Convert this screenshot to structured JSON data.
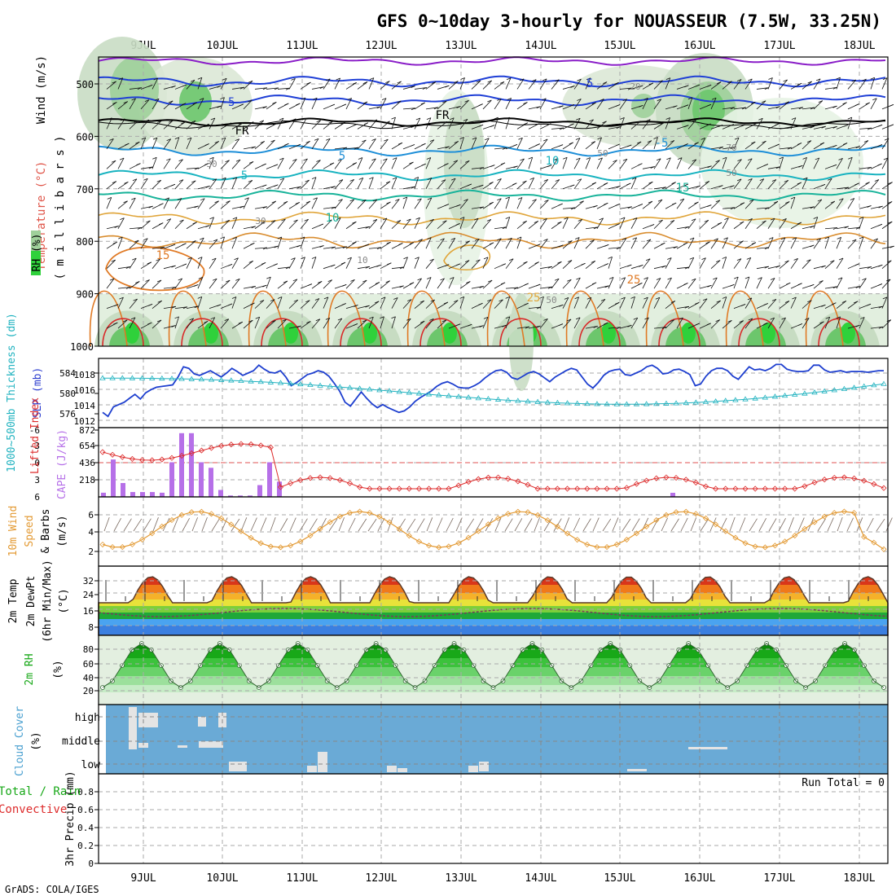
{
  "title": "GFS 0~10day 3-hourly for NOUASSEUR (7.5W, 33.25N)",
  "credit": "GrADS: COLA/IGES",
  "run_total": "Run Total = 0",
  "date_labels": [
    "9JUL",
    "10JUL",
    "11JUL",
    "12JUL",
    "13JUL",
    "14JUL",
    "15JUL",
    "16JUL",
    "17JUL",
    "18JUL"
  ],
  "panels": {
    "upper": {
      "rh_label": "RH (%)",
      "ylabel_temp": "Temperature (°C)",
      "ylabel_wind": "Wind (m/s)",
      "ylabel_mb": "( m i l l i b a r s )",
      "levels": [
        "500",
        "600",
        "700",
        "800",
        "900",
        "1000"
      ],
      "contour_labels": [
        "-5",
        "-5",
        "-5",
        "FR",
        "FR",
        "5",
        "5",
        "10",
        "10",
        "15",
        "15",
        "25",
        "25",
        "20",
        "50",
        "50",
        "30",
        "30",
        "50",
        "10",
        "70"
      ]
    },
    "slp": {
      "ylabel_thk": "1000~500mb Thickness (dm)",
      "ylabel_slp": "SLP (mb)",
      "thk_ticks": [
        "584",
        "580",
        "576"
      ],
      "slp_ticks": [
        "1018",
        "1016",
        "1014",
        "1012"
      ]
    },
    "cape": {
      "ylabel_li": "Lifted Index",
      "ylabel_cape": "CAPE (J/kg)",
      "li_ticks": [
        "-6",
        "-3",
        "0",
        "3",
        "6"
      ],
      "cape_ticks": [
        "872",
        "654",
        "436",
        "218"
      ]
    },
    "wind10": {
      "ylabel_1": "10m Wind",
      "ylabel_2": "Speed",
      "ylabel_3": "& Barbs",
      "ylabel_4": "(m/s)",
      "ticks": [
        "6",
        "4",
        "2"
      ]
    },
    "temp2m": {
      "ylabel_1": "2m Temp",
      "ylabel_2": "2m DewPt",
      "ylabel_3": "(6hr Min/Max)",
      "ylabel_4": "(°C)",
      "ticks": [
        "32",
        "24",
        "16",
        "8"
      ]
    },
    "rh2m": {
      "ylabel_1": "2m RH",
      "ylabel_2": "(%)",
      "ticks": [
        "80",
        "60",
        "40",
        "20"
      ]
    },
    "cloud": {
      "ylabel": "Cloud Cover",
      "ylabel_2": "(%)",
      "levels": [
        "high",
        "middle",
        "low"
      ]
    },
    "precip": {
      "ylabel_1": "Total / Rain",
      "ylabel_2": "Convective",
      "ylabel_3": "3hr Precip (mm)",
      "ticks": [
        "0.8",
        "0.6",
        "0.4",
        "0.2",
        "0"
      ]
    }
  },
  "colors": {
    "slp": "#1e3fcf",
    "thickness": "#22b3c0",
    "li": "#dd2b2b",
    "cape": "#b670e8",
    "wind": "#e39a34",
    "temp": "#5a3a2a",
    "rh": "#18a818",
    "cloud_bg": "#6aaad6"
  },
  "chart_data": [
    {
      "type": "line",
      "name": "SLP",
      "unit": "mb",
      "ylim": [
        1011.5,
        1019.5
      ],
      "values": [
        1013,
        1012.5,
        1013.7,
        1014,
        1014.3,
        1014.8,
        1015.3,
        1014.7,
        1015.5,
        1015.9,
        1016.2,
        1016.3,
        1016.4,
        1016.5,
        1017.5,
        1018.8,
        1018.6,
        1017.9,
        1017.7,
        1018,
        1018.3,
        1017.9,
        1017.5,
        1018,
        1018.6,
        1018.2,
        1017.7,
        1018,
        1018.3,
        1019,
        1018.5,
        1018.1,
        1018,
        1018.3,
        1017.5,
        1016.4,
        1016.8,
        1017.3,
        1017.8,
        1018,
        1018.3,
        1018.1,
        1017.6,
        1016.7,
        1015.7,
        1014.3,
        1013.8,
        1014.7,
        1015.6,
        1014.8,
        1014.1,
        1013.6,
        1014,
        1013.6,
        1013.3,
        1013,
        1013.2,
        1013.7,
        1014.4,
        1014.9,
        1015.3,
        1015.7,
        1016.3,
        1016.7,
        1016.9,
        1016.6,
        1016.2,
        1016.1,
        1016.1,
        1016.4,
        1016.8,
        1017.4,
        1017.9,
        1018.3,
        1018.4,
        1018.1,
        1017.4,
        1017.2,
        1017.6,
        1018,
        1018.2,
        1017.9,
        1017.4,
        1016.9,
        1017.5,
        1017.9,
        1018.3,
        1018.6,
        1018.4,
        1017.5,
        1016.6,
        1016.1,
        1016.8,
        1017.7,
        1018.2,
        1018.4,
        1018.5,
        1017.8,
        1017.7,
        1018,
        1018.3,
        1018.8,
        1019,
        1018.6,
        1017.9,
        1018,
        1018.4,
        1018.5,
        1018.2,
        1017.8,
        1016.4,
        1016.6,
        1017.6,
        1018.3,
        1018.6,
        1018.6,
        1018.3,
        1017.6,
        1017.2,
        1018,
        1018.8,
        1018.4,
        1018.5,
        1018.3,
        1018.6,
        1019.1,
        1019.1,
        1018.5,
        1018.3,
        1018.2,
        1018.2,
        1018.3,
        1019,
        1019,
        1018.4,
        1018.1,
        1018.2,
        1018.3,
        1018.1,
        1018.2,
        1018.2,
        1018.2,
        1018.1,
        1018.2,
        1018.3,
        1018.3
      ],
      "fallback_note": ""
    }
  ]
}
